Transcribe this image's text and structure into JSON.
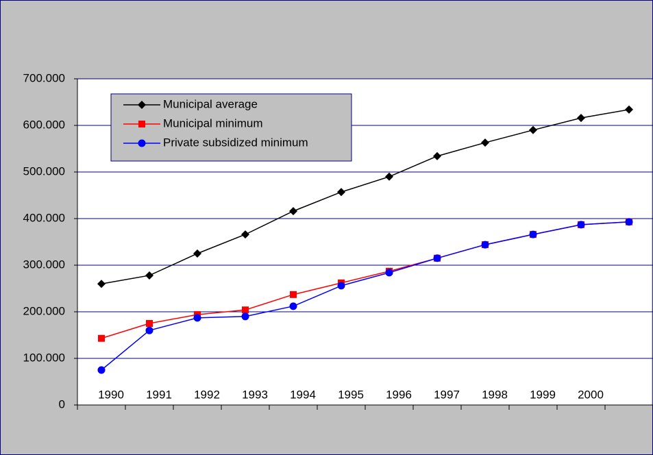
{
  "chart_data": {
    "type": "line",
    "categories": [
      "1990",
      "1991",
      "1992",
      "1993",
      "1994",
      "1995",
      "1996",
      "1997",
      "1998",
      "1999",
      "2000",
      null
    ],
    "series": [
      {
        "name": "Municipal average",
        "color": "#000000",
        "marker": "diamond",
        "values": [
          260000,
          278000,
          325000,
          366000,
          416000,
          457000,
          490000,
          534000,
          563000,
          590000,
          616000,
          634000
        ]
      },
      {
        "name": "Municipal minimum",
        "color": "#ff0000",
        "marker": "square",
        "values": [
          143000,
          175000,
          194000,
          204000,
          237000,
          262000,
          287000,
          315000,
          344000,
          366000,
          387000,
          393000
        ]
      },
      {
        "name": "Private subsidized minimum",
        "color": "#0000ff",
        "marker": "circle",
        "values": [
          75000,
          160000,
          187000,
          190000,
          212000,
          256000,
          284000,
          315000,
          344000,
          366000,
          387000,
          393000
        ]
      }
    ],
    "ylim": [
      0,
      700000
    ],
    "yticks": [
      0,
      {
        "value": 100000,
        "label": "100.000"
      },
      {
        "value": 200000,
        "label": "200.000"
      },
      {
        "value": 300000,
        "label": "300.000"
      },
      {
        "value": 400000,
        "label": "400.000"
      },
      {
        "value": 500000,
        "label": "500.000"
      },
      {
        "value": 600000,
        "label": "600.000"
      },
      {
        "value": 700000,
        "label": "700.000"
      }
    ],
    "grid": true,
    "legend": "top-left"
  }
}
